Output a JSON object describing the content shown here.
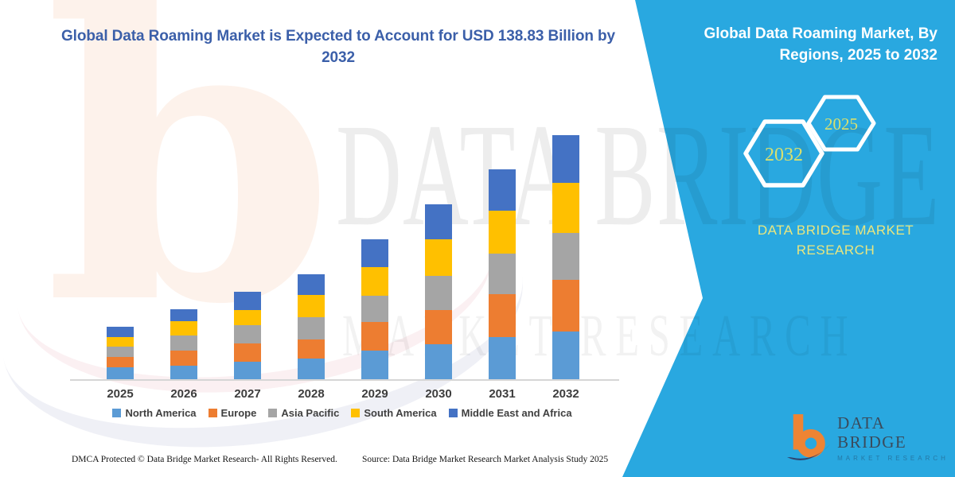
{
  "title": {
    "text": "Global Data Roaming Market is Expected to Account for USD 138.83 Billion by 2032"
  },
  "side_panel": {
    "heading": "Global Data Roaming Market, By Regions, 2025 to 2032",
    "hexagon_labels": [
      "2032",
      "2025"
    ],
    "brand_line1": "DATA BRIDGE MARKET",
    "brand_line2": "RESEARCH"
  },
  "watermark": {
    "line1": "DATA BRIDGE",
    "line2": "MARKET RESEARCH",
    "letter": "b"
  },
  "logo": {
    "name": "DATA BRIDGE",
    "subtitle": "MARKET RESEARCH"
  },
  "footer": {
    "dmca": "DMCA Protected © Data Bridge Market Research-  All Rights Reserved.",
    "source": "Source: Data Bridge Market Research  Market Analysis Study 2025"
  },
  "colors": {
    "accent_cyan": "#29a8e0",
    "title_blue": "#3b5fa9",
    "hex_label_yellow": "#d9e06e",
    "brand_yellow": "#e9e67f"
  },
  "chart_data": {
    "type": "bar",
    "stacked": true,
    "unit": "USD Billion",
    "title": "Global Data Roaming Market, By Regions, 2025 to 2032",
    "categories": [
      "2025",
      "2026",
      "2027",
      "2028",
      "2029",
      "2030",
      "2031",
      "2032"
    ],
    "series": [
      {
        "name": "North America",
        "color": "#5B9BD5",
        "values": [
          6.8,
          7.5,
          9.8,
          11.7,
          16.2,
          20.0,
          23.8,
          27.1
        ]
      },
      {
        "name": "Europe",
        "color": "#ED7D31",
        "values": [
          6.0,
          9.0,
          10.5,
          11.1,
          16.5,
          19.5,
          24.4,
          29.3
        ]
      },
      {
        "name": "Asia Pacific",
        "color": "#A5A5A5",
        "values": [
          5.7,
          8.3,
          10.2,
          12.5,
          14.6,
          19.4,
          23.3,
          26.6
        ]
      },
      {
        "name": "South America",
        "color": "#FFC000",
        "values": [
          5.6,
          8.0,
          8.6,
          12.5,
          16.2,
          20.7,
          24.0,
          28.3
        ]
      },
      {
        "name": "Middle East and Africa",
        "color": "#4472C4",
        "values": [
          5.5,
          6.8,
          10.5,
          11.6,
          16.1,
          19.5,
          23.6,
          27.5
        ]
      }
    ],
    "totals": [
      29.6,
      39.6,
      49.6,
      59.4,
      79.6,
      99.1,
      119.1,
      138.8
    ],
    "annotation": "2032 total = USD 138.83 Billion",
    "ylim": [
      0,
      140
    ],
    "gridlines": false,
    "y_axis_visible": false,
    "legend_position": "bottom"
  }
}
